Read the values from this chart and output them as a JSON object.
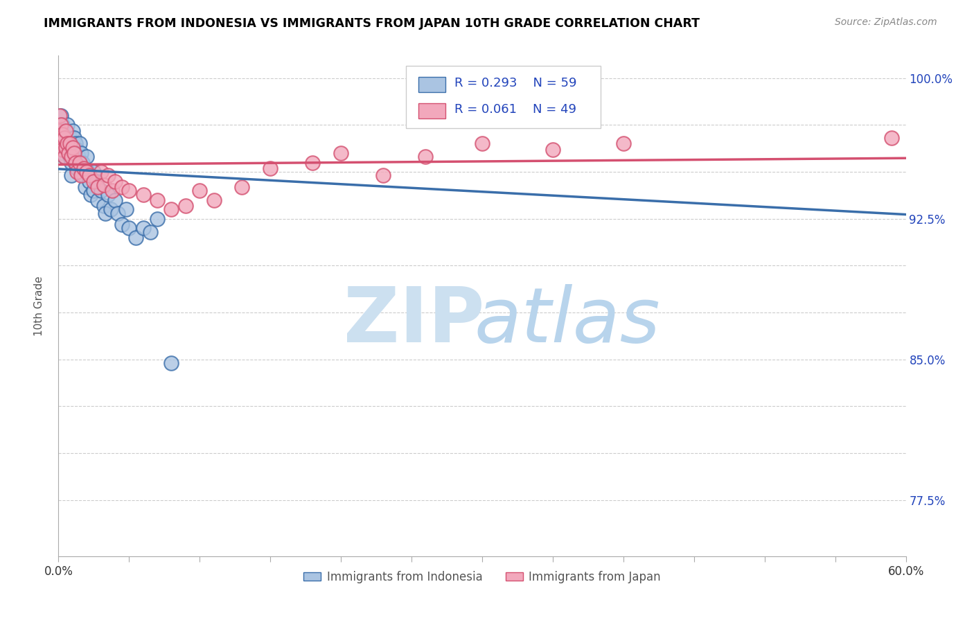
{
  "title": "IMMIGRANTS FROM INDONESIA VS IMMIGRANTS FROM JAPAN 10TH GRADE CORRELATION CHART",
  "source": "Source: ZipAtlas.com",
  "ylabel": "10th Grade",
  "xlim": [
    0.0,
    0.6
  ],
  "ylim": [
    0.745,
    1.012
  ],
  "xticks": [
    0.0,
    0.05,
    0.1,
    0.15,
    0.2,
    0.25,
    0.3,
    0.35,
    0.4,
    0.45,
    0.5,
    0.55,
    0.6
  ],
  "xticklabels": [
    "0.0%",
    "",
    "",
    "",
    "",
    "",
    "",
    "",
    "",
    "",
    "",
    "",
    "60.0%"
  ],
  "ytick_positions": [
    0.775,
    0.8,
    0.825,
    0.85,
    0.875,
    0.9,
    0.925,
    0.95,
    0.975,
    1.0
  ],
  "yticklabels_right": [
    "77.5%",
    "",
    "",
    "85.0%",
    "",
    "",
    "92.5%",
    "",
    "",
    "100.0%"
  ],
  "legend_r1": "R = 0.293",
  "legend_n1": "N = 59",
  "legend_r2": "R = 0.061",
  "legend_n2": "N = 49",
  "color_indonesia": "#aac4e2",
  "color_japan": "#f2a8bc",
  "color_line_indonesia": "#3a6eaa",
  "color_line_japan": "#d45070",
  "color_legend_text": "#2244bb",
  "watermark_zip_color": "#cce0f0",
  "watermark_atlas_color": "#b8d4ec",
  "indonesia_x": [
    0.002,
    0.002,
    0.002,
    0.003,
    0.003,
    0.003,
    0.004,
    0.004,
    0.004,
    0.005,
    0.005,
    0.006,
    0.006,
    0.007,
    0.007,
    0.008,
    0.008,
    0.009,
    0.009,
    0.009,
    0.01,
    0.01,
    0.011,
    0.011,
    0.012,
    0.012,
    0.013,
    0.013,
    0.014,
    0.015,
    0.016,
    0.016,
    0.017,
    0.018,
    0.019,
    0.02,
    0.021,
    0.022,
    0.023,
    0.025,
    0.025,
    0.027,
    0.028,
    0.03,
    0.032,
    0.033,
    0.035,
    0.037,
    0.04,
    0.042,
    0.045,
    0.048,
    0.05,
    0.055,
    0.06,
    0.065,
    0.07,
    0.08,
    0.35
  ],
  "indonesia_y": [
    0.98,
    0.975,
    0.97,
    0.975,
    0.968,
    0.96,
    0.972,
    0.965,
    0.958,
    0.97,
    0.963,
    0.975,
    0.965,
    0.97,
    0.96,
    0.968,
    0.958,
    0.965,
    0.955,
    0.948,
    0.972,
    0.96,
    0.968,
    0.956,
    0.965,
    0.955,
    0.962,
    0.952,
    0.958,
    0.965,
    0.96,
    0.95,
    0.955,
    0.948,
    0.942,
    0.958,
    0.95,
    0.945,
    0.938,
    0.95,
    0.94,
    0.945,
    0.935,
    0.94,
    0.932,
    0.928,
    0.938,
    0.93,
    0.935,
    0.928,
    0.922,
    0.93,
    0.92,
    0.915,
    0.92,
    0.918,
    0.925,
    0.848,
    1.0
  ],
  "japan_x": [
    0.001,
    0.001,
    0.001,
    0.002,
    0.002,
    0.003,
    0.003,
    0.004,
    0.004,
    0.005,
    0.005,
    0.006,
    0.007,
    0.008,
    0.009,
    0.01,
    0.011,
    0.012,
    0.013,
    0.015,
    0.016,
    0.018,
    0.02,
    0.022,
    0.025,
    0.028,
    0.03,
    0.032,
    0.035,
    0.038,
    0.04,
    0.045,
    0.05,
    0.06,
    0.07,
    0.08,
    0.09,
    0.1,
    0.11,
    0.13,
    0.15,
    0.18,
    0.2,
    0.23,
    0.26,
    0.3,
    0.35,
    0.4,
    0.59
  ],
  "japan_y": [
    0.98,
    0.972,
    0.965,
    0.975,
    0.967,
    0.97,
    0.962,
    0.968,
    0.958,
    0.972,
    0.963,
    0.965,
    0.96,
    0.965,
    0.958,
    0.963,
    0.96,
    0.955,
    0.95,
    0.955,
    0.948,
    0.952,
    0.95,
    0.948,
    0.945,
    0.942,
    0.95,
    0.943,
    0.948,
    0.94,
    0.945,
    0.942,
    0.94,
    0.938,
    0.935,
    0.93,
    0.932,
    0.94,
    0.935,
    0.942,
    0.952,
    0.955,
    0.96,
    0.948,
    0.958,
    0.965,
    0.962,
    0.965,
    0.968
  ]
}
